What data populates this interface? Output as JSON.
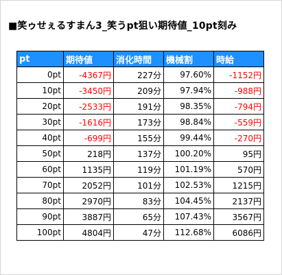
{
  "title": "■笑ゥせぇるすまん3_笑うpt狙い期待値_10pt刻み",
  "headers": [
    "pt",
    "期待値",
    "消化時間",
    "機械割",
    "時給"
  ],
  "rows": [
    {
      "pt": "0pt",
      "ev": "-4367円",
      "time": "227分",
      "rate": "97.60%",
      "wage": "-1152円"
    },
    {
      "pt": "10pt",
      "ev": "-3450円",
      "time": "209分",
      "rate": "97.94%",
      "wage": "-988円"
    },
    {
      "pt": "20pt",
      "ev": "-2533円",
      "time": "191分",
      "rate": "98.35%",
      "wage": "-794円"
    },
    {
      "pt": "30pt",
      "ev": "-1616円",
      "time": "173分",
      "rate": "98.84%",
      "wage": "-559円"
    },
    {
      "pt": "40pt",
      "ev": "-699円",
      "time": "155分",
      "rate": "99.44%",
      "wage": "-270円"
    },
    {
      "pt": "50pt",
      "ev": "218円",
      "time": "137分",
      "rate": "100.20%",
      "wage": "95円"
    },
    {
      "pt": "60pt",
      "ev": "1135円",
      "time": "119分",
      "rate": "101.19%",
      "wage": "570円"
    },
    {
      "pt": "70pt",
      "ev": "2052円",
      "time": "101分",
      "rate": "102.53%",
      "wage": "1215円"
    },
    {
      "pt": "80pt",
      "ev": "2970円",
      "time": "83分",
      "rate": "104.45%",
      "wage": "2137円"
    },
    {
      "pt": "90pt",
      "ev": "3887円",
      "time": "65分",
      "rate": "107.43%",
      "wage": "3567円"
    },
    {
      "pt": "100pt",
      "ev": "4804円",
      "time": "47分",
      "rate": "112.68%",
      "wage": "6086円"
    }
  ],
  "colors": {
    "header_bg": "#1e90ff",
    "header_text": "#ffffff",
    "negative": "#ff0000"
  }
}
